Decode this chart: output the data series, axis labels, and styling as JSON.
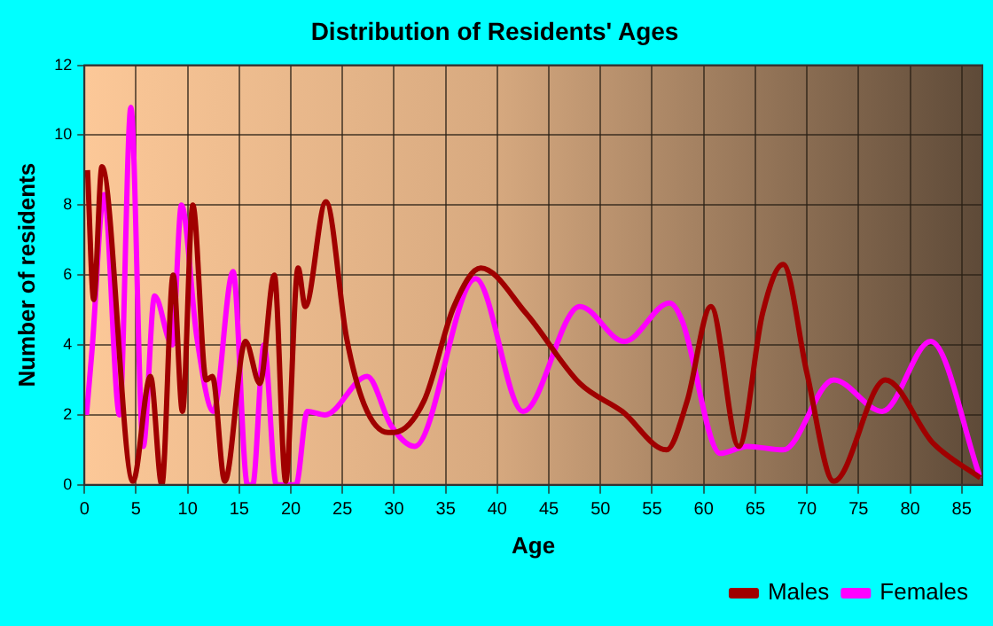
{
  "chart_data": {
    "type": "line",
    "title": "Distribution of Residents' Ages",
    "xlabel": "Age",
    "ylabel": "Number of residents",
    "xlim": [
      0,
      87
    ],
    "xticks": [
      0,
      5,
      10,
      15,
      20,
      25,
      30,
      35,
      40,
      45,
      50,
      55,
      60,
      65,
      70,
      75,
      80,
      85
    ],
    "ylim": [
      0,
      12
    ],
    "yticks": [
      0,
      2,
      4,
      6,
      8,
      10,
      12
    ],
    "grid": true,
    "legend": "bottom right",
    "marker": "none",
    "line_style": "solid",
    "series": [
      {
        "name": "Males",
        "color": "#a00000",
        "x": [
          0.3,
          0.9,
          1.7,
          4.7,
          6.4,
          7.5,
          8.6,
          9.5,
          10.5,
          11.8,
          12.4,
          13.6,
          15.6,
          17,
          18.4,
          19.5,
          20.7,
          21.4,
          23.4,
          25.4,
          27.1,
          29.4,
          30,
          32.9,
          35.8,
          38.4,
          42.8,
          48,
          52.1,
          56.4,
          58.4,
          60.7,
          63.4,
          65.7,
          67.7,
          70,
          72.6,
          77.6,
          82.2,
          86.8
        ],
        "values": [
          9,
          5.3,
          9.1,
          0.1,
          3.1,
          0,
          6,
          2.1,
          8,
          3,
          3.1,
          0.1,
          4.1,
          2.9,
          6,
          0.1,
          6.2,
          5.1,
          8.1,
          4.2,
          2.3,
          1.5,
          1.5,
          2.4,
          5.1,
          6.2,
          4.9,
          2.9,
          2.1,
          1,
          2.4,
          5.1,
          1.1,
          4.9,
          6.3,
          3.2,
          0.1,
          3,
          1.2,
          0.2
        ]
      },
      {
        "name": "Females",
        "color": "#ff00ff",
        "x": [
          0.2,
          0.75,
          1.9,
          3.4,
          4.5,
          5.7,
          6.8,
          8.5,
          9.4,
          10.9,
          12.5,
          14.4,
          15.8,
          16.3,
          17.4,
          18.6,
          20.5,
          21.6,
          23.3,
          27.4,
          29.7,
          32,
          37.9,
          42.5,
          48,
          52.3,
          56.7,
          57.9,
          61.6,
          64.2,
          67.7,
          72.6,
          77.3,
          82,
          86.8
        ],
        "values": [
          2,
          3.9,
          8.3,
          2,
          10.8,
          1.1,
          5.4,
          4,
          8,
          4.2,
          2.1,
          6.1,
          0,
          0,
          4,
          0,
          0,
          2.1,
          2,
          3.1,
          1.7,
          1.1,
          5.9,
          2.1,
          5.1,
          4.1,
          5.2,
          4.7,
          0.9,
          1.1,
          1,
          3,
          2.1,
          4.1,
          0.2
        ]
      }
    ]
  }
}
